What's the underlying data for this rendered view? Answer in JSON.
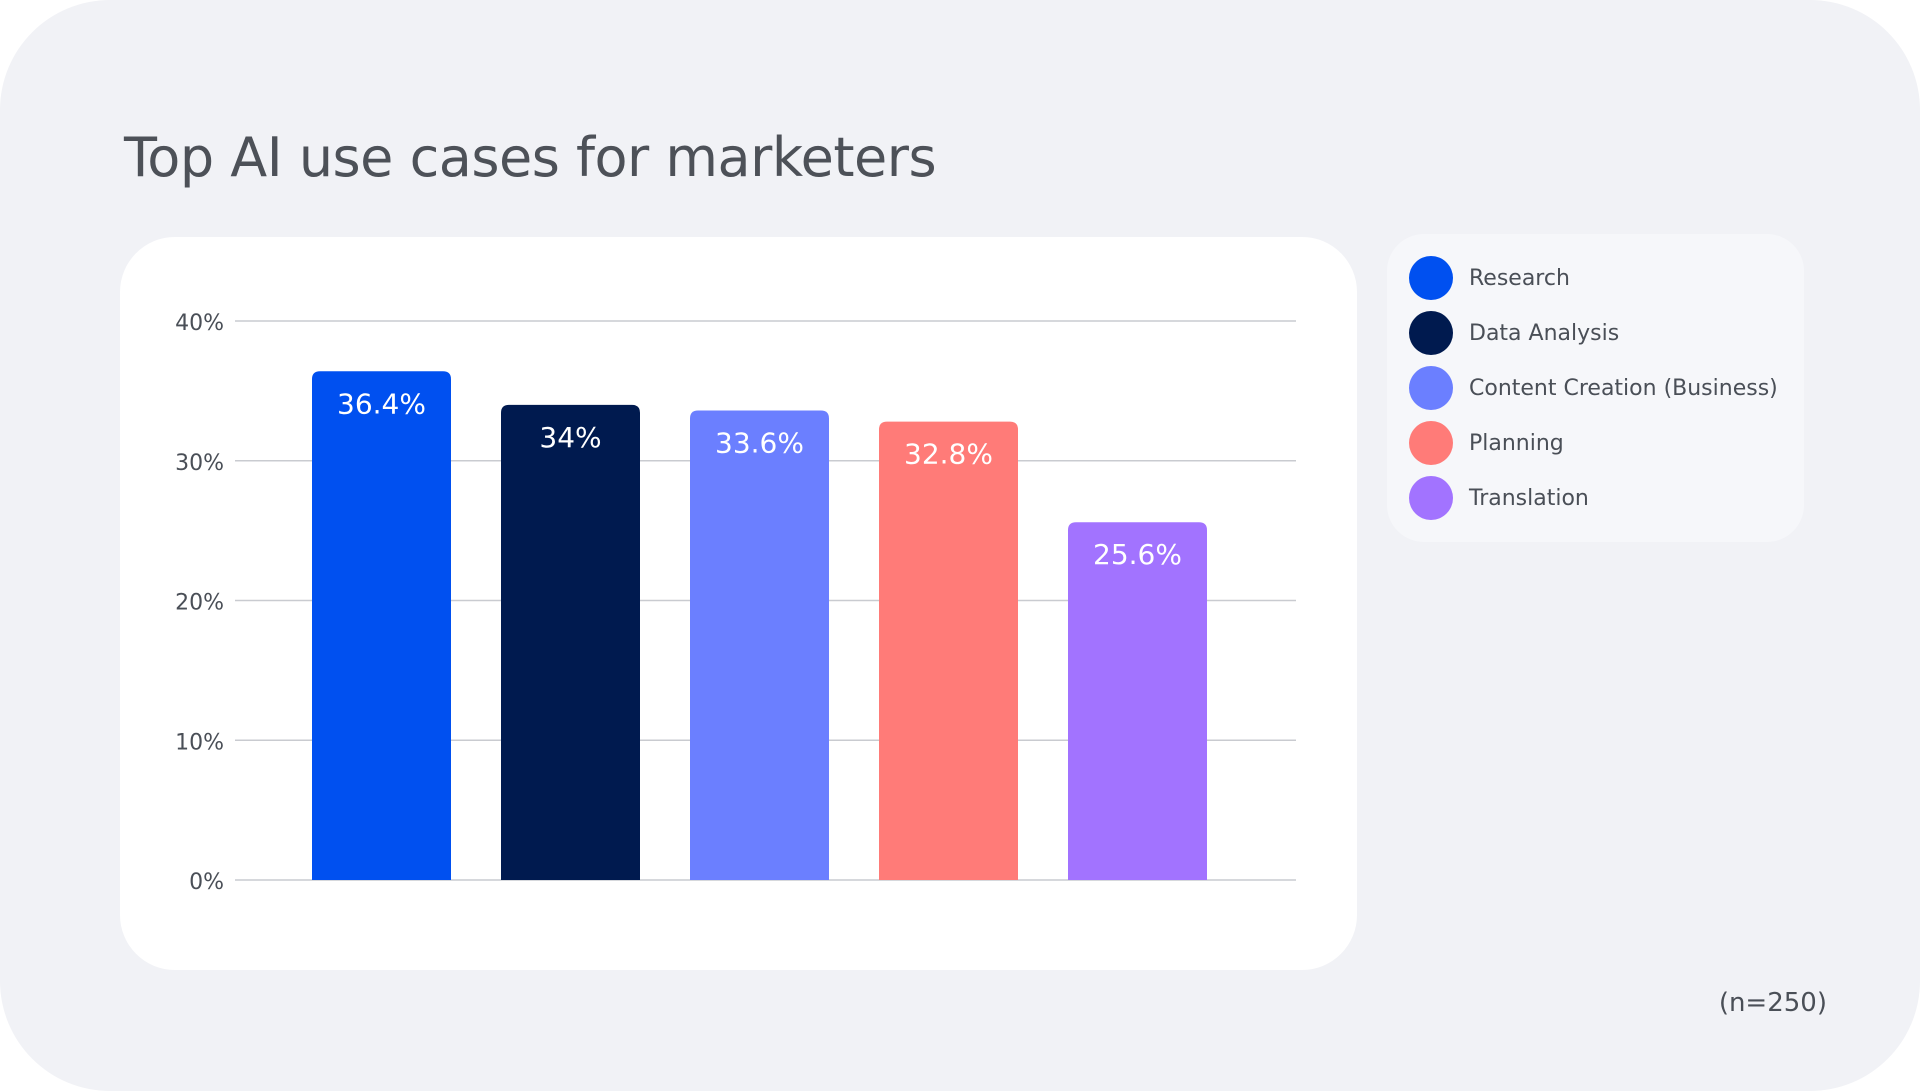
{
  "colors": {
    "background": "#f1f2f6",
    "text": "#4a4f57",
    "grid": "#c9cbd0"
  },
  "note": "(n=250)",
  "chart_data": {
    "type": "bar",
    "title": "Top AI use cases for marketers",
    "categories": [
      "Research",
      "Data Analysis",
      "Content Creation (Business)",
      "Planning",
      "Translation"
    ],
    "values": [
      36.4,
      34,
      33.6,
      32.8,
      25.6
    ],
    "data_labels": [
      "36.4%",
      "34%",
      "33.6%",
      "32.8%",
      "25.6%"
    ],
    "colors": [
      "#0050f0",
      "#001a4f",
      "#6b7fff",
      "#ff7b78",
      "#a273ff"
    ],
    "ylim": [
      0,
      40
    ],
    "yticks": [
      0,
      10,
      20,
      30,
      40
    ],
    "ytick_labels": [
      "0%",
      "10%",
      "20%",
      "30%",
      "40%"
    ],
    "xlabel": "",
    "ylabel": "",
    "grid": true,
    "legend_placement": "right"
  }
}
